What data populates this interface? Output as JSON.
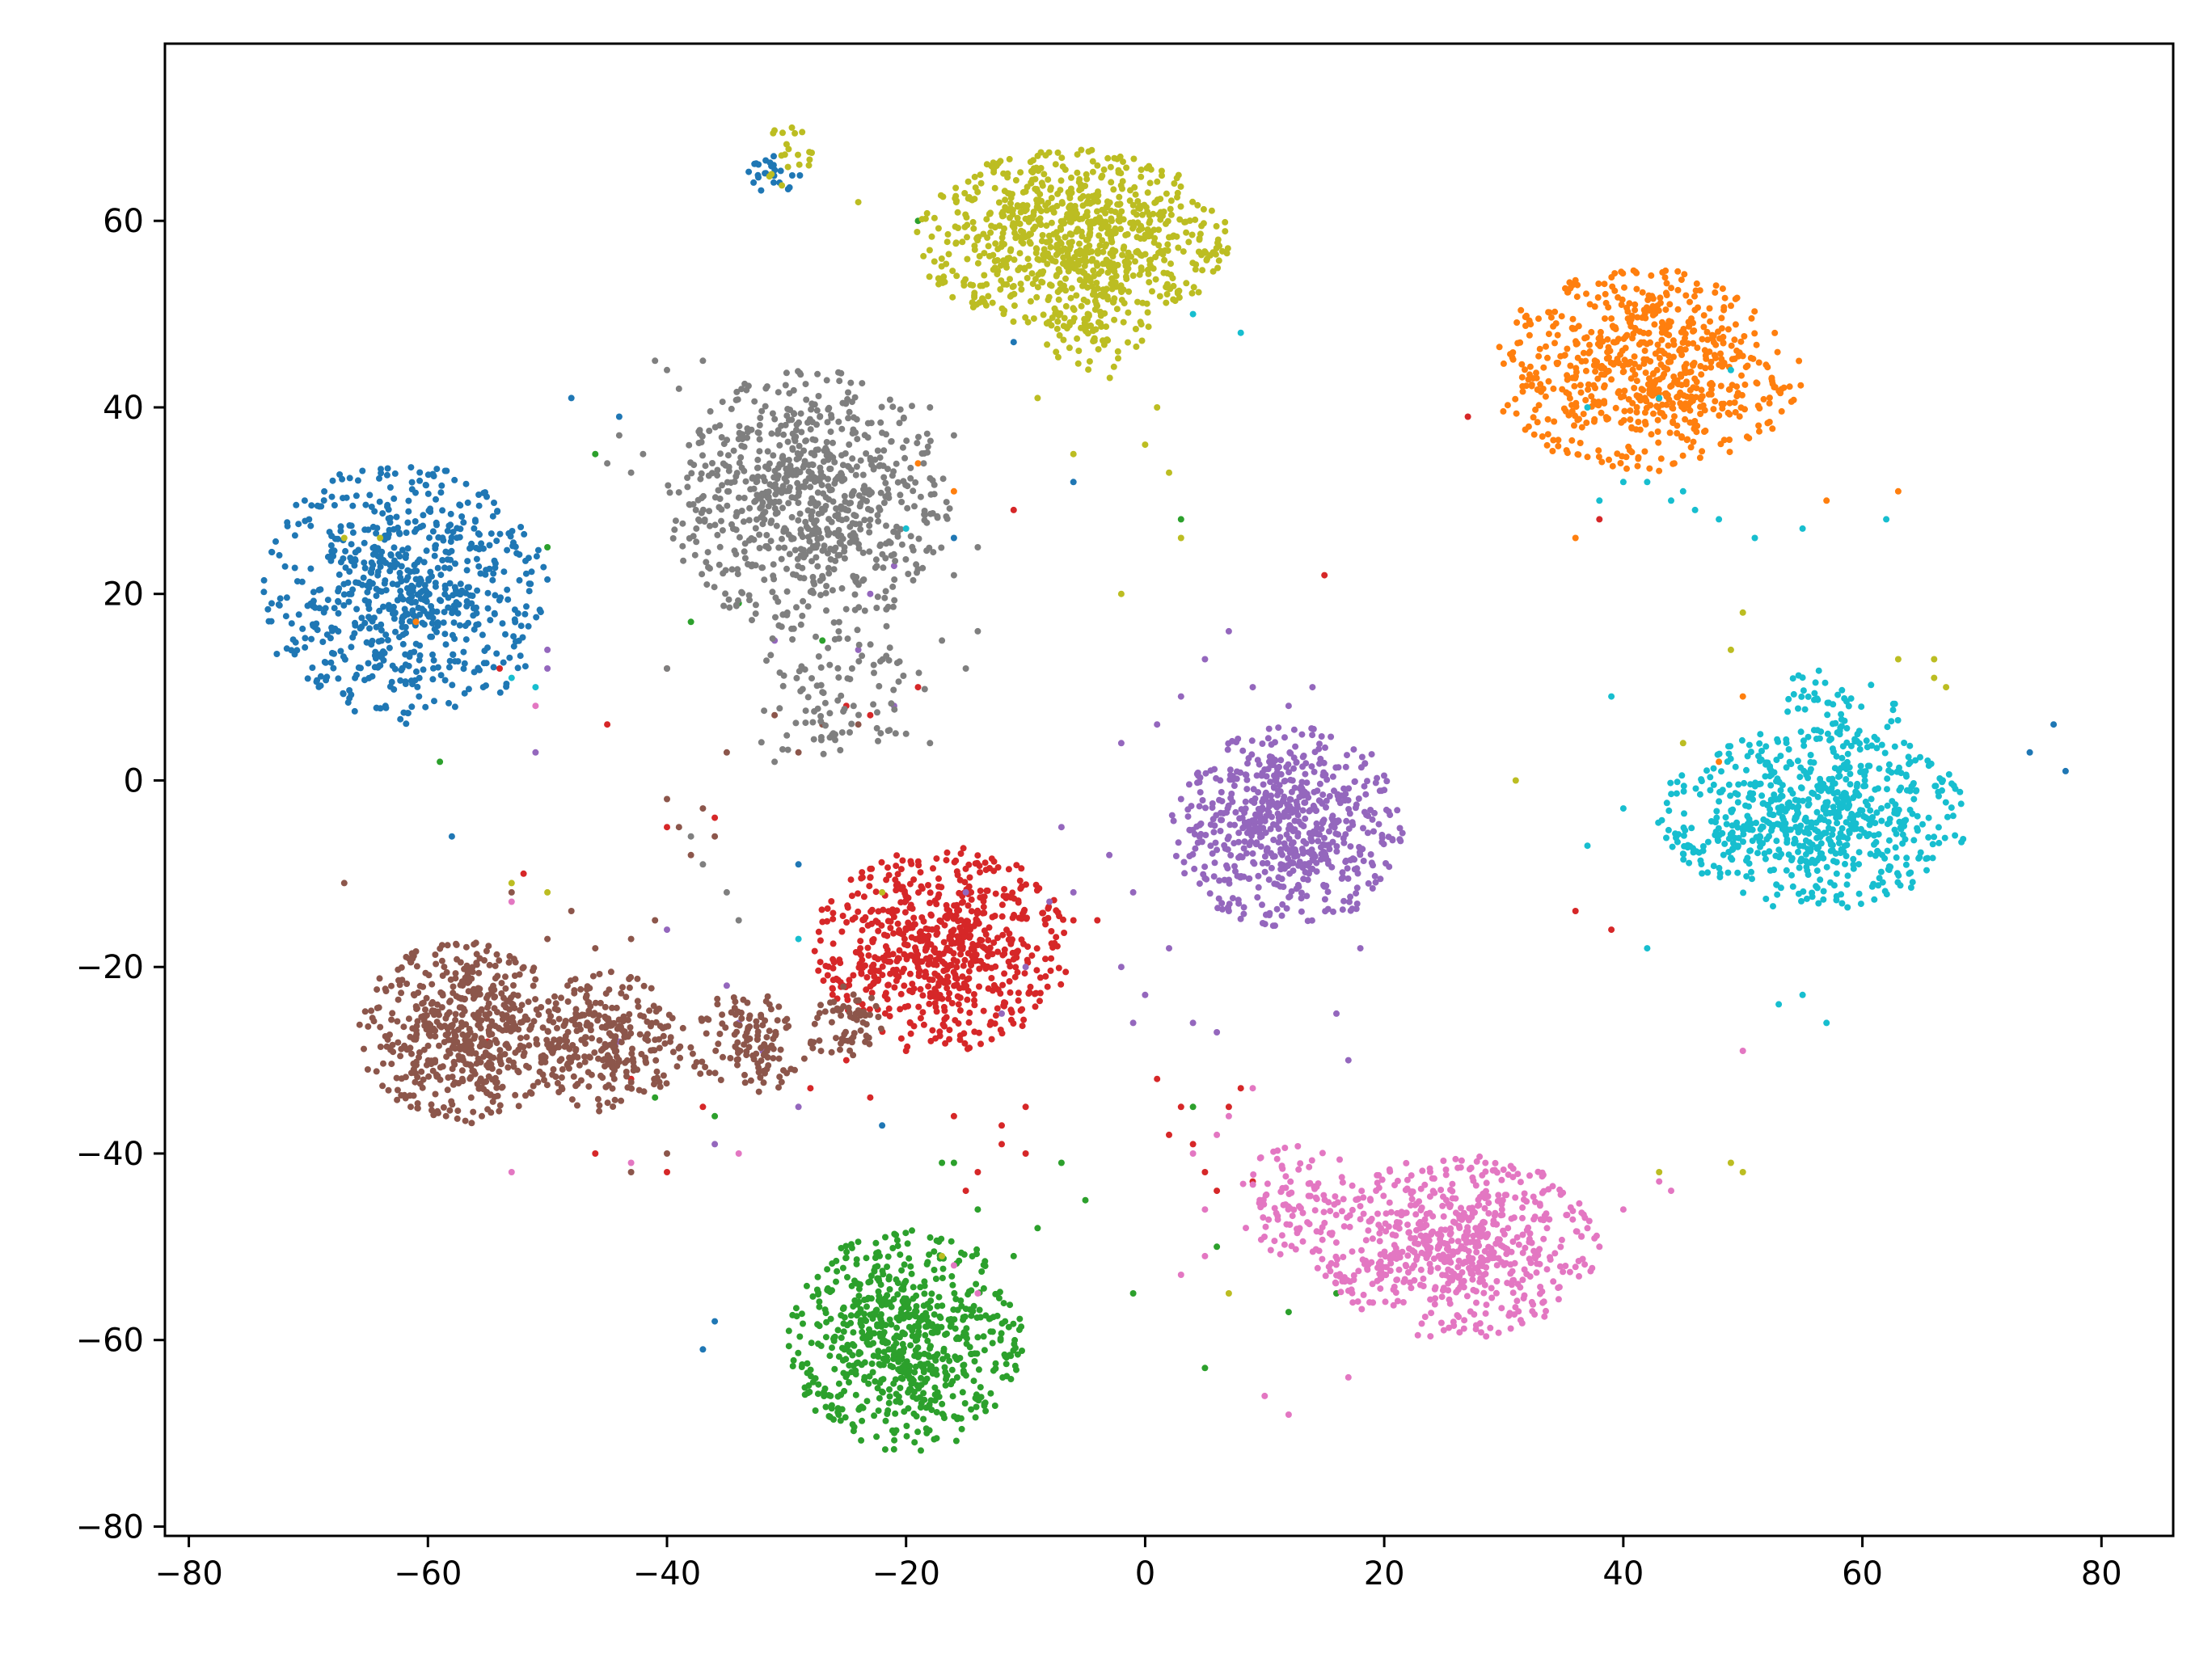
{
  "chart_data": {
    "type": "scatter",
    "title": "",
    "xlabel": "",
    "ylabel": "",
    "xlim": [
      -82,
      86
    ],
    "ylim": [
      -81,
      79
    ],
    "grid": false,
    "legend": "none",
    "x_ticks": [
      -80,
      -60,
      -40,
      -20,
      0,
      20,
      40,
      60,
      80
    ],
    "y_ticks": [
      -80,
      -60,
      -40,
      -20,
      0,
      20,
      40,
      60
    ],
    "x_tick_labels": [
      "−80",
      "−60",
      "−40",
      "−20",
      "0",
      "20",
      "40",
      "60",
      "80"
    ],
    "y_tick_labels": [
      "−80",
      "−60",
      "−40",
      "−20",
      "0",
      "20",
      "40",
      "60"
    ],
    "series": [
      {
        "color": "#1f77b4",
        "clusters": [
          {
            "cx": -62,
            "cy": 20,
            "rx": 11,
            "ry": 13,
            "n": 700
          },
          {
            "cx": -31,
            "cy": 65,
            "rx": 2,
            "ry": 2,
            "n": 25
          }
        ],
        "points": [
          [
            -6,
            32
          ],
          [
            -11,
            47
          ],
          [
            -48,
            41
          ],
          [
            -44,
            39
          ],
          [
            74,
            3
          ],
          [
            76,
            6
          ],
          [
            77,
            1
          ],
          [
            -16,
            26
          ],
          [
            -37,
            -61
          ],
          [
            -36,
            -58
          ],
          [
            -22,
            -37
          ],
          [
            -58,
            -6
          ],
          [
            -29,
            -9
          ]
        ]
      },
      {
        "color": "#ff7f0e",
        "clusters": [
          {
            "cx": 42,
            "cy": 44,
            "rx": 12,
            "ry": 10,
            "n": 700
          }
        ],
        "points": [
          [
            -19,
            34
          ],
          [
            -61,
            17
          ],
          [
            50,
            9
          ],
          [
            48,
            2
          ],
          [
            36,
            26
          ],
          [
            57,
            30
          ],
          [
            63,
            31
          ],
          [
            -16,
            31
          ]
        ]
      },
      {
        "color": "#2ca02c",
        "clusters": [
          {
            "cx": -20,
            "cy": -60,
            "rx": 9,
            "ry": 11,
            "n": 700
          }
        ],
        "points": [
          [
            -27,
            15
          ],
          [
            -34,
            19
          ],
          [
            -46,
            35
          ],
          [
            -50,
            25
          ],
          [
            -59,
            2
          ],
          [
            3,
            28
          ],
          [
            4,
            -35
          ],
          [
            6,
            -50
          ],
          [
            -19,
            60
          ],
          [
            -38,
            17
          ],
          [
            -36,
            -36
          ],
          [
            -41,
            -34
          ],
          [
            12,
            -57
          ],
          [
            5,
            -63
          ],
          [
            -16,
            -41
          ],
          [
            -9,
            -48
          ],
          [
            -7,
            -41
          ],
          [
            -5,
            -45
          ],
          [
            -1,
            -55
          ],
          [
            16,
            -55
          ],
          [
            -17,
            -41
          ],
          [
            -14,
            -46
          ],
          [
            -11,
            -51
          ]
        ]
      },
      {
        "color": "#d62728",
        "clusters": [
          {
            "cx": -17,
            "cy": -18,
            "rx": 10,
            "ry": 10,
            "n": 700
          }
        ],
        "points": [
          [
            -25,
            -30
          ],
          [
            -28,
            -33
          ],
          [
            -23,
            -34
          ],
          [
            -10,
            -35
          ],
          [
            -12,
            -37
          ],
          [
            -20,
            -29
          ],
          [
            -6,
            -15
          ],
          [
            -4,
            -15
          ],
          [
            -11,
            29
          ],
          [
            15,
            22
          ],
          [
            -45,
            6
          ],
          [
            -19,
            10
          ],
          [
            -25,
            8
          ],
          [
            -23,
            7
          ],
          [
            -55,
            -28
          ],
          [
            -52,
            -10
          ],
          [
            -54,
            12
          ],
          [
            -36,
            -4
          ],
          [
            -40,
            -5
          ],
          [
            1,
            -32
          ],
          [
            3,
            -35
          ],
          [
            4,
            -39
          ],
          [
            5,
            -42
          ],
          [
            2,
            -38
          ],
          [
            6,
            -44
          ],
          [
            7,
            -35
          ],
          [
            -14,
            -42
          ],
          [
            36,
            -14
          ],
          [
            39,
            -16
          ],
          [
            38,
            28
          ],
          [
            27,
            39
          ],
          [
            -43,
            -32
          ],
          [
            -46,
            -40
          ],
          [
            -40,
            -42
          ],
          [
            -37,
            -35
          ],
          [
            -16,
            -36
          ],
          [
            -15,
            -44
          ],
          [
            -12,
            -39
          ],
          [
            -10,
            -40
          ],
          [
            8,
            -33
          ],
          [
            9,
            -43
          ]
        ]
      },
      {
        "color": "#9467bd",
        "clusters": [
          {
            "cx": 12,
            "cy": -5,
            "rx": 9,
            "ry": 10,
            "n": 650
          }
        ],
        "points": [
          [
            5,
            13
          ],
          [
            3,
            9
          ],
          [
            -2,
            4
          ],
          [
            1,
            6
          ],
          [
            3,
            -2
          ],
          [
            -3,
            -8
          ],
          [
            -1,
            -12
          ],
          [
            -7,
            -5
          ],
          [
            -6,
            -12
          ],
          [
            -2,
            -20
          ],
          [
            0,
            -23
          ],
          [
            4,
            -26
          ],
          [
            2,
            -18
          ],
          [
            -1,
            -26
          ],
          [
            6,
            -27
          ],
          [
            7,
            -14
          ],
          [
            16,
            -25
          ],
          [
            17,
            -30
          ],
          [
            9,
            10
          ],
          [
            12,
            8
          ],
          [
            14,
            10
          ],
          [
            18,
            -18
          ],
          [
            -10,
            -20
          ],
          [
            -12,
            -25
          ],
          [
            -40,
            -16
          ],
          [
            -35,
            -22
          ],
          [
            -15,
            -12
          ],
          [
            -21,
            23
          ],
          [
            -23,
            20
          ],
          [
            -51,
            3
          ],
          [
            -50,
            12
          ],
          [
            -24,
            14
          ],
          [
            -21,
            8
          ],
          [
            -8,
            -13
          ],
          [
            -44,
            -28
          ],
          [
            -34,
            -26
          ],
          [
            -32,
            -29
          ],
          [
            -29,
            -35
          ],
          [
            -36,
            -39
          ],
          [
            7,
            16
          ],
          [
            -31,
            15
          ],
          [
            -50,
            14
          ]
        ]
      },
      {
        "color": "#8c564b",
        "clusters": [
          {
            "cx": -57,
            "cy": -27,
            "rx": 8,
            "ry": 9,
            "n": 550
          },
          {
            "cx": -45,
            "cy": -28,
            "rx": 6,
            "ry": 7,
            "n": 280
          },
          {
            "cx": -33,
            "cy": -28,
            "rx": 5,
            "ry": 5,
            "n": 130
          },
          {
            "cx": -25,
            "cy": -26,
            "rx": 3,
            "ry": 4,
            "n": 60
          }
        ],
        "points": [
          [
            -39,
            -5
          ],
          [
            -38,
            -8
          ],
          [
            -37,
            -3
          ],
          [
            -36,
            -6
          ],
          [
            -40,
            -2
          ],
          [
            -48,
            -14
          ],
          [
            -50,
            -17
          ],
          [
            -46,
            -18
          ],
          [
            -53,
            -12
          ],
          [
            -67,
            -11
          ],
          [
            -41,
            -15
          ],
          [
            -43,
            -17
          ],
          [
            -43,
            -42
          ],
          [
            -40,
            -40
          ],
          [
            -24,
            6
          ],
          [
            -29,
            3
          ],
          [
            -40,
            12
          ],
          [
            -31,
            7
          ],
          [
            -35,
            3
          ],
          [
            -27,
            6
          ]
        ]
      },
      {
        "color": "#e377c2",
        "clusters": [
          {
            "cx": 26,
            "cy": -50,
            "rx": 11,
            "ry": 9,
            "n": 650
          },
          {
            "cx": 13,
            "cy": -45,
            "rx": 5,
            "ry": 6,
            "n": 100
          }
        ],
        "points": [
          [
            7,
            -36
          ],
          [
            4,
            -40
          ],
          [
            5,
            -46
          ],
          [
            3,
            -53
          ],
          [
            5,
            -51
          ],
          [
            6,
            -38
          ],
          [
            9,
            -33
          ],
          [
            10,
            -66
          ],
          [
            12,
            -68
          ],
          [
            17,
            -64
          ],
          [
            37,
            -48
          ],
          [
            38,
            -50
          ],
          [
            40,
            -46
          ],
          [
            43,
            -43
          ],
          [
            44,
            -44
          ],
          [
            -43,
            -41
          ],
          [
            -34,
            -40
          ],
          [
            -53,
            -42
          ],
          [
            -51,
            8
          ],
          [
            -53,
            -13
          ],
          [
            50,
            -29
          ],
          [
            -16,
            -52
          ],
          [
            -14,
            -55
          ]
        ]
      },
      {
        "color": "#7f7f7f",
        "clusters": [
          {
            "cx": -28,
            "cy": 30,
            "rx": 11,
            "ry": 13,
            "n": 800
          },
          {
            "cx": -25,
            "cy": 12,
            "rx": 7,
            "ry": 5,
            "n": 60
          },
          {
            "cx": -27,
            "cy": 6,
            "rx": 6,
            "ry": 3,
            "n": 40
          }
        ],
        "points": [
          [
            -44,
            37
          ],
          [
            -42,
            35
          ],
          [
            -40,
            44
          ],
          [
            -41,
            45
          ],
          [
            -37,
            45
          ],
          [
            -39,
            42
          ],
          [
            -43,
            33
          ],
          [
            -45,
            34
          ],
          [
            -16,
            37
          ],
          [
            -18,
            40
          ],
          [
            -14,
            25
          ],
          [
            -16,
            22
          ],
          [
            -14,
            16
          ],
          [
            -15,
            12
          ],
          [
            -17,
            15
          ],
          [
            -18,
            4
          ],
          [
            -20,
            5
          ],
          [
            -31,
            2
          ],
          [
            -40,
            12
          ],
          [
            -38,
            -6
          ],
          [
            -37,
            -9
          ],
          [
            -35,
            -12
          ],
          [
            -34,
            -15
          ]
        ]
      },
      {
        "color": "#bcbd22",
        "clusters": [
          {
            "cx": -6,
            "cy": 58,
            "rx": 12,
            "ry": 9,
            "n": 850
          },
          {
            "cx": -4,
            "cy": 48,
            "rx": 4,
            "ry": 5,
            "n": 60
          },
          {
            "cx": -30,
            "cy": 67,
            "rx": 2,
            "ry": 3,
            "n": 20
          }
        ],
        "points": [
          [
            0,
            36
          ],
          [
            1,
            40
          ],
          [
            2,
            33
          ],
          [
            -2,
            20
          ],
          [
            3,
            26
          ],
          [
            -24,
            62
          ],
          [
            -6,
            35
          ],
          [
            -11,
            53
          ],
          [
            -9,
            41
          ],
          [
            50,
            18
          ],
          [
            49,
            14
          ],
          [
            63,
            13
          ],
          [
            66,
            13
          ],
          [
            66,
            11
          ],
          [
            67,
            10
          ],
          [
            49,
            -41
          ],
          [
            50,
            -42
          ],
          [
            43,
            -42
          ],
          [
            45,
            4
          ],
          [
            31,
            0
          ],
          [
            -64,
            26
          ],
          [
            -67,
            26
          ],
          [
            -53,
            -11
          ],
          [
            -50,
            -12
          ],
          [
            -22,
            -12
          ],
          [
            -17,
            -51
          ],
          [
            7,
            -55
          ]
        ]
      },
      {
        "color": "#17becf",
        "clusters": [
          {
            "cx": 56,
            "cy": -4,
            "rx": 12,
            "ry": 9,
            "n": 700
          },
          {
            "cx": 58,
            "cy": 8,
            "rx": 5,
            "ry": 4,
            "n": 50
          }
        ],
        "points": [
          [
            38,
            30
          ],
          [
            40,
            32
          ],
          [
            42,
            32
          ],
          [
            44,
            30
          ],
          [
            45,
            31
          ],
          [
            46,
            29
          ],
          [
            48,
            28
          ],
          [
            51,
            26
          ],
          [
            55,
            27
          ],
          [
            62,
            28
          ],
          [
            39,
            9
          ],
          [
            40,
            -3
          ],
          [
            37,
            -7
          ],
          [
            42,
            -18
          ],
          [
            53,
            -24
          ],
          [
            55,
            -23
          ],
          [
            57,
            -26
          ],
          [
            4,
            50
          ],
          [
            8,
            48
          ],
          [
            -20,
            27
          ],
          [
            -29,
            -17
          ],
          [
            -51,
            10
          ],
          [
            -53,
            11
          ],
          [
            49,
            44
          ],
          [
            43,
            41
          ],
          [
            37,
            40
          ]
        ]
      }
    ]
  }
}
